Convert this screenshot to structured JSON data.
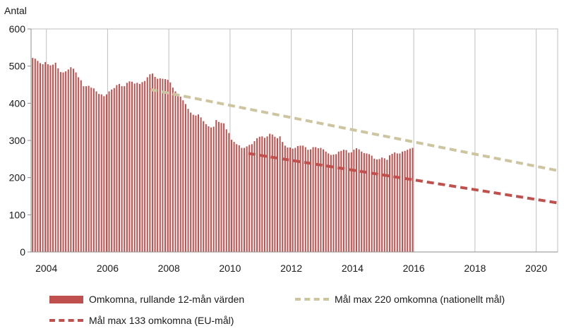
{
  "chart_data": {
    "type": "bar",
    "ylabel": "Antal",
    "ylim": [
      0,
      600
    ],
    "yticks": [
      "0",
      "100",
      "200",
      "300",
      "400",
      "500",
      "600"
    ],
    "xlim": [
      2003.5,
      2020.7
    ],
    "xticks": [
      "2004",
      "2006",
      "2008",
      "2010",
      "2012",
      "2014",
      "2016",
      "2018",
      "2020"
    ],
    "grid": "vertical",
    "legend_position": "bottom",
    "series": [
      {
        "name": "Omkomna, rullande 12-mån värden",
        "kind": "bar",
        "color": "#c0504d",
        "start": 2003.55,
        "step": 0.0833,
        "values": [
          522,
          520,
          514,
          508,
          505,
          511,
          505,
          502,
          504,
          509,
          494,
          484,
          483,
          486,
          491,
          497,
          493,
          483,
          470,
          462,
          446,
          446,
          447,
          442,
          440,
          432,
          425,
          424,
          419,
          424,
          432,
          437,
          441,
          449,
          452,
          446,
          446,
          455,
          459,
          458,
          453,
          455,
          452,
          457,
          460,
          470,
          478,
          480,
          471,
          466,
          467,
          466,
          465,
          463,
          456,
          442,
          432,
          425,
          418,
          408,
          398,
          385,
          375,
          369,
          367,
          370,
          362,
          352,
          344,
          338,
          335,
          337,
          355,
          350,
          347,
          346,
          330,
          320,
          302,
          296,
          290,
          287,
          280,
          280,
          284,
          288,
          290,
          298,
          306,
          310,
          311,
          307,
          311,
          318,
          316,
          310,
          306,
          311,
          296,
          286,
          281,
          281,
          278,
          280,
          285,
          286,
          286,
          282,
          275,
          276,
          282,
          282,
          279,
          280,
          276,
          270,
          265,
          261,
          262,
          263,
          270,
          272,
          275,
          274,
          267,
          268,
          275,
          279,
          276,
          270,
          266,
          265,
          263,
          259,
          251,
          249,
          250,
          254,
          252,
          248,
          260,
          264,
          268,
          265,
          265,
          270,
          272,
          275,
          278,
          280
        ]
      },
      {
        "name": "Mål max 220 omkomna (nationellt mål)",
        "kind": "dashed-line",
        "color": "#cdc5a0",
        "points": [
          [
            2007.4,
            437
          ],
          [
            2020.7,
            219
          ]
        ]
      },
      {
        "name": "Mål max 133 omkomna (EU-mål)",
        "kind": "dashed-line",
        "color": "#c0504d",
        "points": [
          [
            2010.6,
            265
          ],
          [
            2020.7,
            132
          ]
        ]
      }
    ]
  },
  "legend": {
    "bars_label": "Omkomna, rullande 12-mån värden",
    "national_label": "Mål max 220 omkomna (nationellt mål)",
    "eu_label": "Mål max 133 omkomna (EU-mål)"
  }
}
